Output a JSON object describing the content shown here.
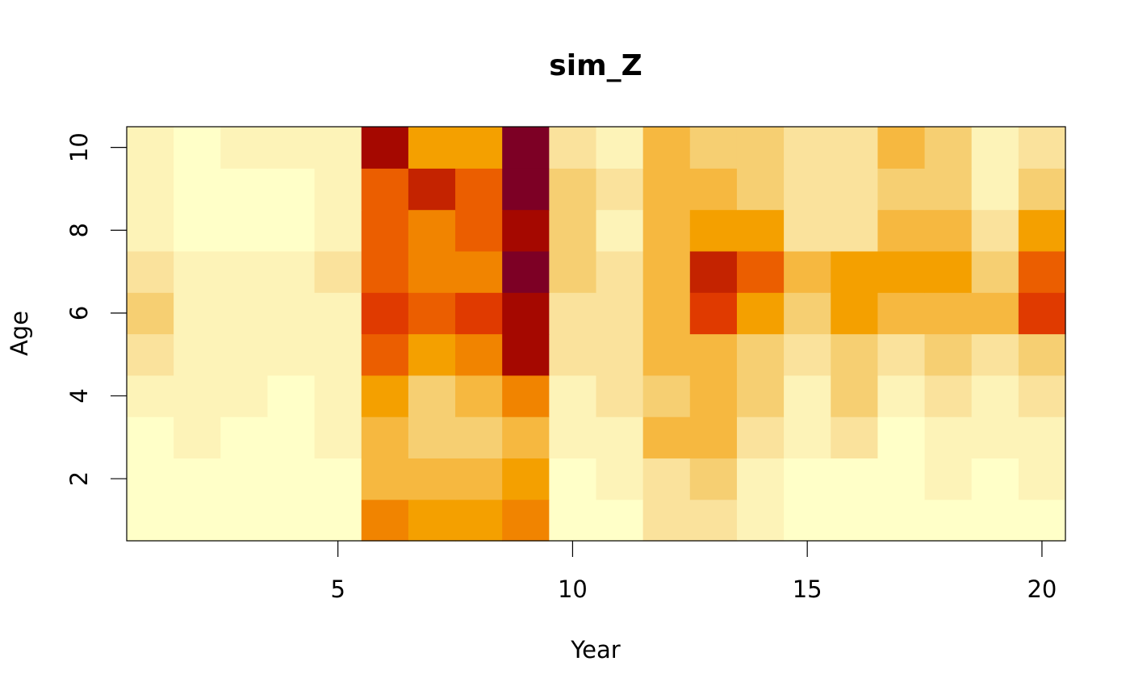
{
  "chart_data": {
    "type": "heatmap",
    "title": "sim_Z",
    "xlabel": "Year",
    "ylabel": "Age",
    "x": [
      1,
      2,
      3,
      4,
      5,
      6,
      7,
      8,
      9,
      10,
      11,
      12,
      13,
      14,
      15,
      16,
      17,
      18,
      19,
      20
    ],
    "y": [
      1,
      2,
      3,
      4,
      5,
      6,
      7,
      8,
      9,
      10
    ],
    "x_ticks": [
      5,
      10,
      15,
      20
    ],
    "y_ticks": [
      2,
      4,
      6,
      8,
      10
    ],
    "xlim": [
      0.5,
      20.5
    ],
    "ylim": [
      0.5,
      10.5
    ],
    "color_scale": "heat (light yellow = low, dark red = high)",
    "palette": [
      "#FFFFC8",
      "#FDF3B8",
      "#FAE29C",
      "#F6CF72",
      "#F6B840",
      "#F4A000",
      "#F18400",
      "#EB5E00",
      "#E03A00",
      "#C42300",
      "#A50800",
      "#7D0025"
    ],
    "levels_note": "0 = lowest (lightest), 11 = highest (darkest)",
    "levels_by_age": [
      [
        0,
        0,
        0,
        0,
        0,
        6,
        5,
        5,
        6,
        0,
        0,
        2,
        2,
        1,
        0,
        0,
        0,
        0,
        0,
        0
      ],
      [
        0,
        0,
        0,
        0,
        0,
        4,
        4,
        4,
        5,
        0,
        1,
        2,
        3,
        1,
        0,
        0,
        0,
        1,
        0,
        1
      ],
      [
        0,
        1,
        0,
        0,
        1,
        4,
        3,
        3,
        4,
        1,
        1,
        4,
        4,
        2,
        1,
        2,
        0,
        1,
        1,
        1
      ],
      [
        1,
        1,
        1,
        0,
        1,
        5,
        3,
        4,
        6,
        1,
        2,
        3,
        4,
        3,
        1,
        3,
        1,
        2,
        1,
        2
      ],
      [
        2,
        1,
        1,
        1,
        1,
        7,
        5,
        6,
        10,
        2,
        2,
        4,
        4,
        3,
        2,
        3,
        2,
        3,
        2,
        3
      ],
      [
        3,
        1,
        1,
        1,
        1,
        8,
        7,
        8,
        10,
        2,
        2,
        4,
        8,
        5,
        3,
        5,
        4,
        4,
        4,
        8
      ],
      [
        2,
        1,
        1,
        1,
        2,
        7,
        6,
        6,
        11,
        3,
        2,
        4,
        9,
        7,
        4,
        5,
        5,
        5,
        3,
        7
      ],
      [
        1,
        0,
        0,
        0,
        1,
        7,
        6,
        7,
        10,
        3,
        1,
        4,
        5,
        5,
        2,
        2,
        4,
        4,
        2,
        5
      ],
      [
        1,
        0,
        0,
        0,
        1,
        7,
        9,
        7,
        11,
        3,
        2,
        4,
        4,
        3,
        2,
        2,
        3,
        3,
        1,
        3
      ],
      [
        1,
        0,
        1,
        1,
        1,
        10,
        5,
        5,
        11,
        2,
        1,
        4,
        3,
        3,
        2,
        2,
        4,
        3,
        1,
        2
      ]
    ],
    "grid": false,
    "legend": "none"
  }
}
